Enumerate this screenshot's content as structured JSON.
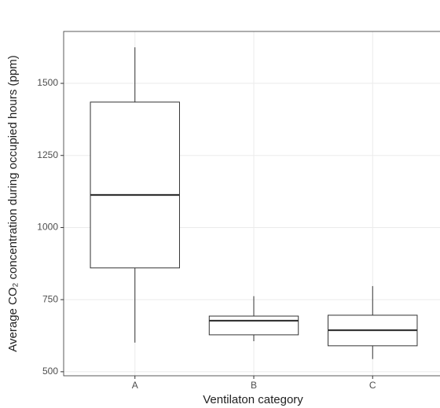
{
  "chart_data": {
    "type": "box",
    "x_label": "Ventilaton category",
    "y_label": "Average CO₂ concentration during occupied hours (ppm)",
    "categories": [
      "A",
      "B",
      "C"
    ],
    "whisker_low": [
      601,
      606,
      544
    ],
    "q1": [
      860,
      628,
      590
    ],
    "median": [
      1113,
      677,
      644
    ],
    "q3": [
      1435,
      693,
      696
    ],
    "whisker_high": [
      1625,
      762,
      797
    ],
    "color": "#333333",
    "ylim": [
      486,
      1680
    ],
    "yticks": [
      500,
      750,
      1000,
      1250,
      1500
    ],
    "grid": true
  }
}
